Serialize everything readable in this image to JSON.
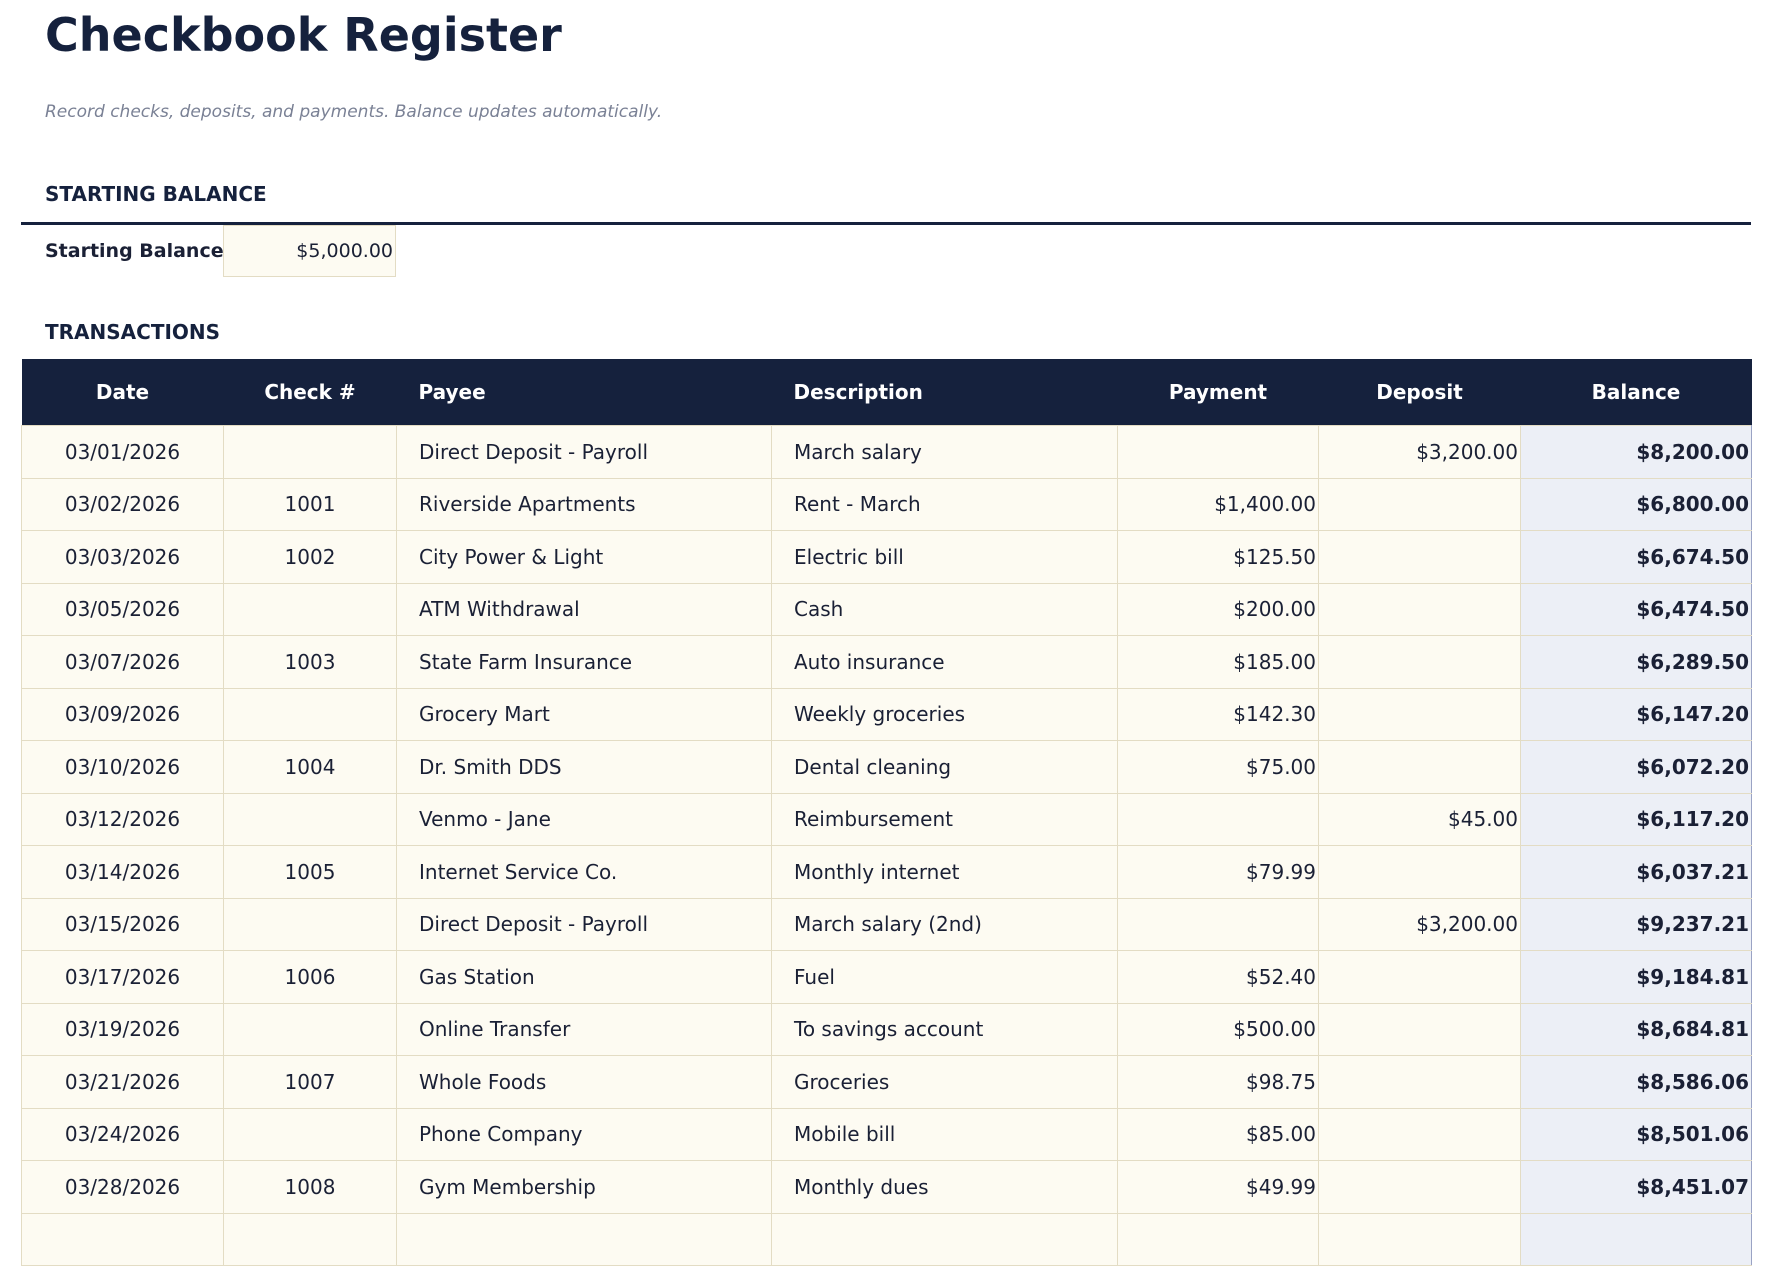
{
  "header": {
    "title": "Checkbook Register",
    "subtitle": "Record checks, deposits, and payments. Balance updates automatically."
  },
  "starting_balance": {
    "heading": "STARTING BALANCE",
    "label": "Starting Balance",
    "amount": "$5,000.00"
  },
  "transactions": {
    "heading": "TRANSACTIONS",
    "columns": [
      "Date",
      "Check #",
      "Payee",
      "Description",
      "Payment",
      "Deposit",
      "Balance"
    ],
    "rows": [
      {
        "date": "03/01/2026",
        "payee": "Direct Deposit - Payroll",
        "description": "March salary",
        "deposit": "$3,200.00",
        "balance": "$8,200.00"
      },
      {
        "date": "03/02/2026",
        "check": "1001",
        "payee": "Riverside Apartments",
        "description": "Rent - March",
        "payment": "$1,400.00",
        "balance": "$6,800.00"
      },
      {
        "date": "03/03/2026",
        "check": "1002",
        "payee": "City Power & Light",
        "description": "Electric bill",
        "payment": "$125.50",
        "balance": "$6,674.50"
      },
      {
        "date": "03/05/2026",
        "payee": "ATM Withdrawal",
        "description": "Cash",
        "payment": "$200.00",
        "balance": "$6,474.50"
      },
      {
        "date": "03/07/2026",
        "check": "1003",
        "payee": "State Farm Insurance",
        "description": "Auto insurance",
        "payment": "$185.00",
        "balance": "$6,289.50"
      },
      {
        "date": "03/09/2026",
        "payee": "Grocery Mart",
        "description": "Weekly groceries",
        "payment": "$142.30",
        "balance": "$6,147.20"
      },
      {
        "date": "03/10/2026",
        "check": "1004",
        "payee": "Dr. Smith DDS",
        "description": "Dental cleaning",
        "payment": "$75.00",
        "balance": "$6,072.20"
      },
      {
        "date": "03/12/2026",
        "payee": "Venmo - Jane",
        "description": "Reimbursement",
        "deposit": "$45.00",
        "balance": "$6,117.20"
      },
      {
        "date": "03/14/2026",
        "check": "1005",
        "payee": "Internet Service Co.",
        "description": "Monthly internet",
        "payment": "$79.99",
        "balance": "$6,037.21"
      },
      {
        "date": "03/15/2026",
        "payee": "Direct Deposit - Payroll",
        "description": "March salary (2nd)",
        "deposit": "$3,200.00",
        "balance": "$9,237.21"
      },
      {
        "date": "03/17/2026",
        "check": "1006",
        "payee": "Gas Station",
        "description": "Fuel",
        "payment": "$52.40",
        "balance": "$9,184.81"
      },
      {
        "date": "03/19/2026",
        "payee": "Online Transfer",
        "description": "To savings account",
        "payment": "$500.00",
        "balance": "$8,684.81"
      },
      {
        "date": "03/21/2026",
        "check": "1007",
        "payee": "Whole Foods",
        "description": "Groceries",
        "payment": "$98.75",
        "balance": "$8,586.06"
      },
      {
        "date": "03/24/2026",
        "payee": "Phone Company",
        "description": "Mobile bill",
        "payment": "$85.00",
        "balance": "$8,501.06"
      },
      {
        "date": "03/28/2026",
        "check": "1008",
        "payee": "Gym Membership",
        "description": "Monthly dues",
        "payment": "$49.99",
        "balance": "$8,451.07"
      }
    ]
  }
}
